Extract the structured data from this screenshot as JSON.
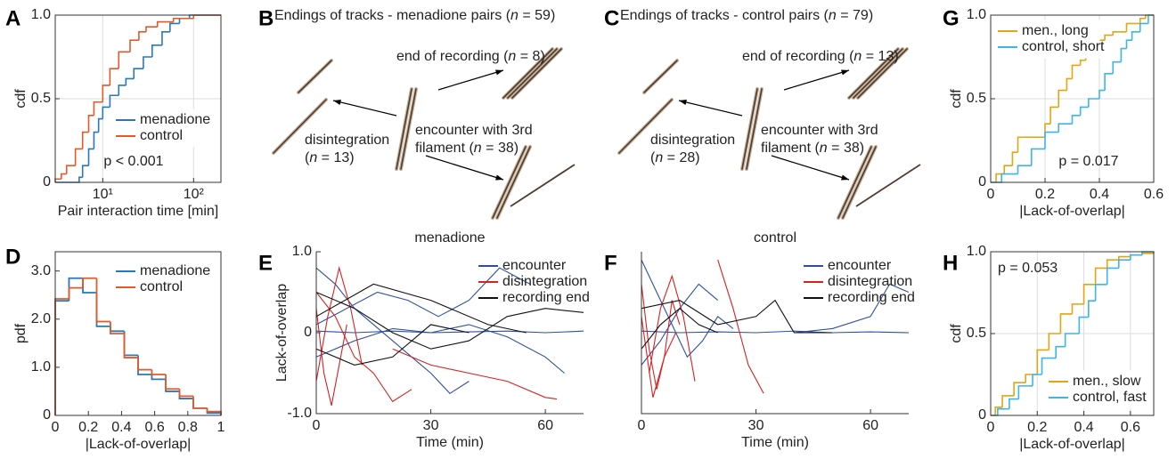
{
  "chart_data": [
    {
      "type": "line",
      "label": "A",
      "step": true,
      "xscale": "log",
      "grid": true,
      "box": true,
      "legend": "lower right",
      "xlabel": "Pair interaction time [min]",
      "ylabel": "cdf",
      "annotation": "p < 0.001",
      "xlim": [
        3,
        200
      ],
      "ylim": [
        0,
        1
      ],
      "xticks": [
        {
          "value": 10,
          "label": "10¹"
        },
        {
          "value": 100,
          "label": "10²"
        }
      ],
      "yticks": [
        0,
        0.5,
        {
          "value": 1,
          "label": "1.0"
        }
      ],
      "series": [
        {
          "name": "menadione",
          "color": "#2b78b8",
          "x": [
            5.5,
            6,
            7,
            8,
            9,
            10,
            12,
            15,
            18,
            22,
            28,
            35,
            45,
            55,
            70,
            90
          ],
          "values": [
            0.03,
            0.1,
            0.2,
            0.3,
            0.38,
            0.45,
            0.52,
            0.58,
            0.62,
            0.68,
            0.75,
            0.82,
            0.9,
            0.95,
            0.98,
            1
          ]
        },
        {
          "name": "control",
          "color": "#e05a2b",
          "x": [
            3,
            3.5,
            4,
            5,
            6,
            7,
            8,
            10,
            12,
            15,
            20,
            25,
            30,
            40,
            60,
            100
          ],
          "values": [
            0.02,
            0.05,
            0.1,
            0.2,
            0.3,
            0.4,
            0.48,
            0.58,
            0.68,
            0.78,
            0.85,
            0.9,
            0.93,
            0.96,
            0.98,
            1
          ]
        }
      ]
    },
    {
      "type": "histogram",
      "label": "D",
      "grid": false,
      "box": true,
      "legend": "upper right",
      "xlabel": "|Lack-of-overlap|",
      "ylabel": "pdf",
      "xlim": [
        0,
        1
      ],
      "ylim": [
        0,
        3.4
      ],
      "xticks": [
        0,
        0.2,
        0.4,
        0.6,
        0.8,
        1
      ],
      "yticks": [
        0,
        {
          "value": 1,
          "label": "1.0"
        },
        {
          "value": 2,
          "label": "2.0"
        },
        {
          "value": 3,
          "label": "3.0"
        }
      ],
      "bins": [
        0,
        0.083,
        0.167,
        0.25,
        0.333,
        0.417,
        0.5,
        0.583,
        0.667,
        0.75,
        0.833,
        0.917,
        1
      ],
      "series": [
        {
          "name": "menadione",
          "color": "#2b78b8",
          "values": [
            2.38,
            2.85,
            2.55,
            1.85,
            1.75,
            1.25,
            0.85,
            0.75,
            0.5,
            0.35,
            0.15,
            0.05
          ]
        },
        {
          "name": "control",
          "color": "#e05a2b",
          "values": [
            2.42,
            2.65,
            2.85,
            1.95,
            1.7,
            1.2,
            0.95,
            0.85,
            0.55,
            0.4,
            0.15,
            0.08
          ]
        }
      ]
    },
    {
      "type": "line",
      "label": "E",
      "title": "menadione",
      "grid": false,
      "box": false,
      "legend": "upper right",
      "xlabel": "Time (min)",
      "ylabel": "Lack-of-overlap",
      "xlim": [
        0,
        70
      ],
      "ylim": [
        -1,
        1
      ],
      "xticks": [
        0,
        30,
        60
      ],
      "yticks": [
        {
          "value": -1,
          "label": "-1.0"
        },
        0,
        {
          "value": 1,
          "label": "1.0"
        }
      ],
      "series": [
        {
          "name": "encounter",
          "color": "#2e4fa0",
          "lines": [
            {
              "x": [
                0,
                5,
                10,
                15,
                20,
                25,
                30,
                35,
                40
              ],
              "values": [
                0.8,
                0.6,
                0.3,
                0.1,
                -0.1,
                -0.3,
                -0.5,
                -0.75,
                -0.6
              ]
            },
            {
              "x": [
                0,
                8,
                16,
                24,
                32,
                40,
                48,
                56
              ],
              "values": [
                0.1,
                0.3,
                0.5,
                0.4,
                0.2,
                0.4,
                0.8,
                0.6
              ]
            },
            {
              "x": [
                0,
                10,
                20,
                30,
                40,
                50,
                60,
                65
              ],
              "values": [
                -0.3,
                -0.1,
                0.05,
                0,
                0.1,
                -0.05,
                -0.3,
                -0.5
              ]
            },
            {
              "x": [
                0,
                10,
                20,
                30,
                40,
                50,
                60,
                70
              ],
              "values": [
                0.02,
                0,
                0.02,
                0,
                0.01,
                0.02,
                0,
                0.02
              ]
            }
          ]
        },
        {
          "name": "disintegration",
          "color": "#d62222",
          "lines": [
            {
              "x": [
                0,
                3,
                6,
                9,
                12
              ],
              "values": [
                -0.6,
                0.2,
                0.8,
                0.3,
                -0.4
              ]
            },
            {
              "x": [
                0,
                5,
                10,
                15,
                20,
                25
              ],
              "values": [
                0.5,
                0.2,
                -0.3,
                -0.5,
                -0.85,
                -0.7
              ]
            },
            {
              "x": [
                20,
                30,
                40,
                50,
                60,
                63
              ],
              "values": [
                -0.2,
                -0.4,
                -0.5,
                -0.6,
                -0.8,
                -0.82
              ]
            },
            {
              "x": [
                0,
                2,
                4,
                6,
                8
              ],
              "values": [
                0.3,
                -0.5,
                -0.9,
                -0.4,
                0.1
              ]
            }
          ]
        },
        {
          "name": "recording end",
          "color": "#111111",
          "lines": [
            {
              "x": [
                0,
                10,
                20,
                30,
                40,
                50,
                60,
                70
              ],
              "values": [
                0.5,
                0.3,
                0,
                -0.2,
                -0.1,
                0.2,
                0.3,
                0.25
              ]
            },
            {
              "x": [
                0,
                10,
                20,
                30,
                40
              ],
              "values": [
                -0.2,
                -0.4,
                -0.3,
                0.1,
                0
              ]
            },
            {
              "x": [
                0,
                15,
                30,
                45,
                55
              ],
              "values": [
                0.2,
                0.6,
                0.4,
                0.1,
                0
              ]
            }
          ]
        }
      ]
    },
    {
      "type": "line",
      "label": "F",
      "title": "control",
      "grid": false,
      "box": false,
      "legend": "upper right",
      "xlabel": "Time (min)",
      "xlim": [
        0,
        70
      ],
      "ylim": [
        -1,
        1
      ],
      "xticks": [
        0,
        30,
        60
      ],
      "series": [
        {
          "name": "encounter",
          "color": "#2e4fa0",
          "lines": [
            {
              "x": [
                0,
                4,
                8,
                12,
                16,
                20,
                24
              ],
              "values": [
                0.9,
                0.5,
                0.1,
                -0.3,
                -0.1,
                0.2,
                0.05
              ]
            },
            {
              "x": [
                0,
                10,
                20,
                30,
                40,
                50,
                60,
                70
              ],
              "values": [
                0.02,
                0,
                0.01,
                0,
                0.02,
                0,
                0.01,
                0
              ]
            },
            {
              "x": [
                40,
                50,
                60,
                65,
                70
              ],
              "values": [
                0,
                0.05,
                0.2,
                0.6,
                0.5
              ]
            },
            {
              "x": [
                0,
                5,
                10,
                15,
                20
              ],
              "values": [
                -0.4,
                -0.1,
                0.3,
                0.6,
                0.4
              ]
            }
          ]
        },
        {
          "name": "disintegration",
          "color": "#d62222",
          "lines": [
            {
              "x": [
                0,
                2,
                4,
                6,
                8,
                10
              ],
              "values": [
                0.6,
                -0.2,
                -0.7,
                -0.3,
                0.4,
                0.1
              ]
            },
            {
              "x": [
                2,
                5,
                8,
                11,
                14
              ],
              "values": [
                -0.5,
                0.3,
                0.7,
                0.2,
                -0.6
              ]
            },
            {
              "x": [
                20,
                24,
                28,
                32
              ],
              "values": [
                0.9,
                0.3,
                -0.4,
                -0.75
              ]
            },
            {
              "x": [
                0,
                3,
                6,
                9
              ],
              "values": [
                0.2,
                -0.8,
                -0.3,
                0
              ]
            }
          ]
        },
        {
          "name": "recording end",
          "color": "#111111",
          "lines": [
            {
              "x": [
                0,
                10,
                20,
                30,
                35,
                40,
                50
              ],
              "values": [
                0.3,
                0.4,
                0.1,
                0.2,
                0.4,
                0,
                0
              ]
            },
            {
              "x": [
                0,
                5,
                10,
                15,
                20
              ],
              "values": [
                -0.2,
                0.1,
                0.3,
                0.1,
                0
              ]
            }
          ]
        }
      ]
    },
    {
      "type": "line",
      "label": "G",
      "step": true,
      "grid": true,
      "box": true,
      "legend": "upper left",
      "xlabel": "|Lack-of-overlap|",
      "ylabel": "cdf",
      "annotation": "p = 0.017",
      "xlim": [
        0,
        0.6
      ],
      "ylim": [
        0,
        1
      ],
      "xticks": [
        0,
        0.2,
        0.4,
        0.6
      ],
      "yticks": [
        0,
        0.5,
        {
          "value": 1,
          "label": "1.0"
        }
      ],
      "series": [
        {
          "name": "men., long",
          "color": "#e3a512",
          "x": [
            0.02,
            0.05,
            0.08,
            0.1,
            0.12,
            0.15,
            0.2,
            0.22,
            0.25,
            0.28,
            0.3,
            0.33,
            0.35,
            0.38,
            0.42,
            0.45,
            0.5,
            0.55,
            0.57
          ],
          "values": [
            0.05,
            0.1,
            0.18,
            0.27,
            0.27,
            0.27,
            0.35,
            0.45,
            0.55,
            0.62,
            0.7,
            0.73,
            0.8,
            0.85,
            0.88,
            0.9,
            0.95,
            0.98,
            1
          ]
        },
        {
          "name": "control, short",
          "color": "#3db5e6",
          "x": [
            0.04,
            0.1,
            0.15,
            0.2,
            0.25,
            0.3,
            0.33,
            0.36,
            0.4,
            0.42,
            0.45,
            0.48,
            0.5,
            0.52,
            0.55,
            0.58
          ],
          "values": [
            0.05,
            0.1,
            0.2,
            0.3,
            0.35,
            0.4,
            0.45,
            0.5,
            0.55,
            0.65,
            0.72,
            0.8,
            0.85,
            0.9,
            0.95,
            1
          ]
        }
      ]
    },
    {
      "type": "line",
      "label": "H",
      "step": true,
      "grid": true,
      "box": true,
      "legend": "lower right",
      "xlabel": "|Lack-of-overlap|",
      "ylabel": "cdf",
      "annotation": "p = 0.053",
      "xlim": [
        0,
        0.7
      ],
      "ylim": [
        0,
        1
      ],
      "xticks": [
        0,
        0.2,
        0.4,
        0.6
      ],
      "yticks": [
        0,
        0.5,
        {
          "value": 1,
          "label": "1.0"
        }
      ],
      "series": [
        {
          "name": "men., slow",
          "color": "#e3a512",
          "x": [
            0.02,
            0.05,
            0.1,
            0.15,
            0.2,
            0.25,
            0.3,
            0.35,
            0.4,
            0.45,
            0.5,
            0.55,
            0.6,
            0.65,
            0.7
          ],
          "values": [
            0.05,
            0.12,
            0.2,
            0.25,
            0.4,
            0.5,
            0.62,
            0.68,
            0.8,
            0.9,
            0.95,
            0.97,
            0.98,
            0.99,
            1
          ]
        },
        {
          "name": "control, fast",
          "color": "#3db5e6",
          "x": [
            0.03,
            0.08,
            0.12,
            0.18,
            0.22,
            0.28,
            0.32,
            0.38,
            0.42,
            0.45,
            0.5,
            0.55,
            0.6,
            0.65
          ],
          "values": [
            0.04,
            0.1,
            0.18,
            0.25,
            0.35,
            0.42,
            0.5,
            0.6,
            0.7,
            0.8,
            0.9,
            0.95,
            0.98,
            1
          ]
        }
      ]
    }
  ],
  "diagrams": [
    {
      "label": "B",
      "title": "Endings of tracks - menadione pairs (n = 59)",
      "end_of_recording": "end of recording (n = 8)",
      "disintegration": [
        "disintegration",
        "(n = 13)"
      ],
      "encounter": [
        "encounter with 3rd",
        "filament (n = 38)"
      ]
    },
    {
      "label": "C",
      "title": "Endings of tracks - control pairs (n = 79)",
      "end_of_recording": "end of recording (n = 13)",
      "disintegration": [
        "disintegration",
        "(n = 28)"
      ],
      "encounter": [
        "encounter with 3rd",
        "filament (n = 38)"
      ]
    }
  ]
}
